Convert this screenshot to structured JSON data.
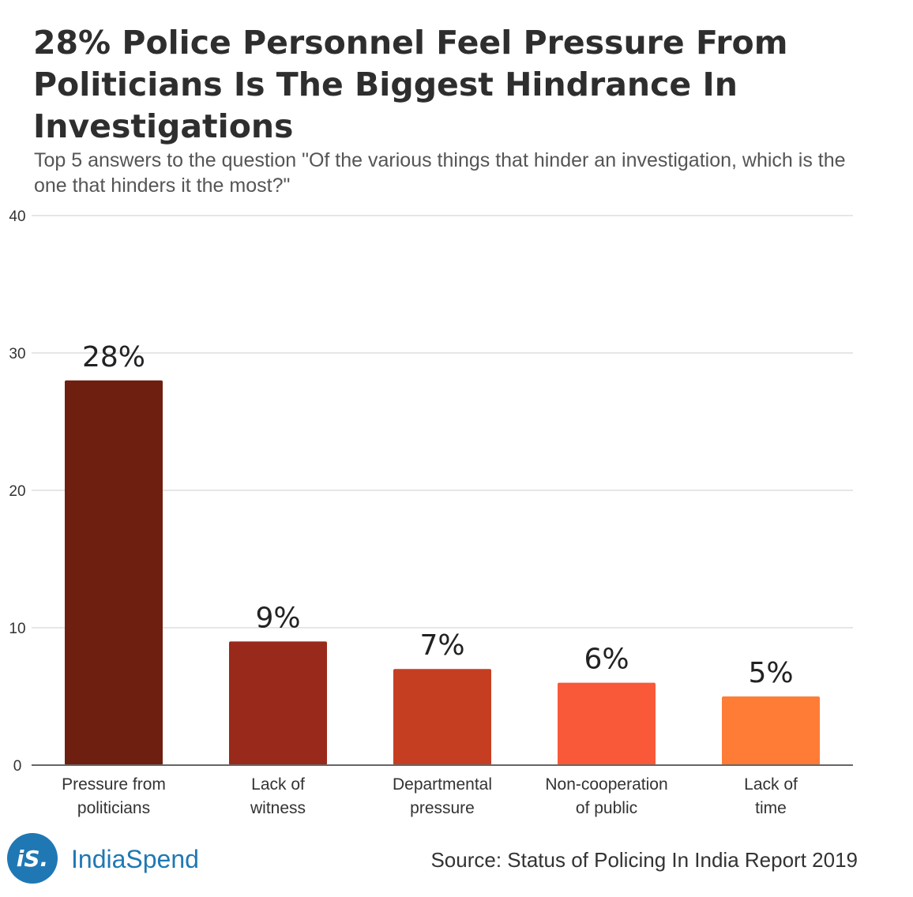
{
  "chart_data": {
    "type": "bar",
    "title": "28% Police Personnel Feel Pressure From Politicians Is The Biggest Hindrance In Investigations",
    "subtitle": "Top 5 answers to the question \"Of the various things that hinder an investigation, which is the one that hinders it the most?\"",
    "categories": [
      [
        "Pressure from",
        "politicians"
      ],
      [
        "Lack of",
        "witness"
      ],
      [
        "Departmental",
        "pressure"
      ],
      [
        "Non-cooperation",
        "of public"
      ],
      [
        "Lack of",
        "time"
      ]
    ],
    "values": [
      28,
      9,
      7,
      6,
      5
    ],
    "data_labels": [
      "28%",
      "9%",
      "7%",
      "6%",
      "5%"
    ],
    "bar_colors": [
      "#6e1f10",
      "#99291a",
      "#c63e22",
      "#f95938",
      "#fe7c36"
    ],
    "ylim": [
      0,
      40
    ],
    "yticks": [
      0,
      10,
      20,
      30,
      40
    ],
    "xlabel": "",
    "ylabel": "",
    "grid": true,
    "legend": "none"
  },
  "footer": {
    "logo_text": "iS.",
    "brand": "IndiaSpend",
    "brand_color": "#1f78b4",
    "source": "Source: Status of Policing In India Report 2019"
  }
}
